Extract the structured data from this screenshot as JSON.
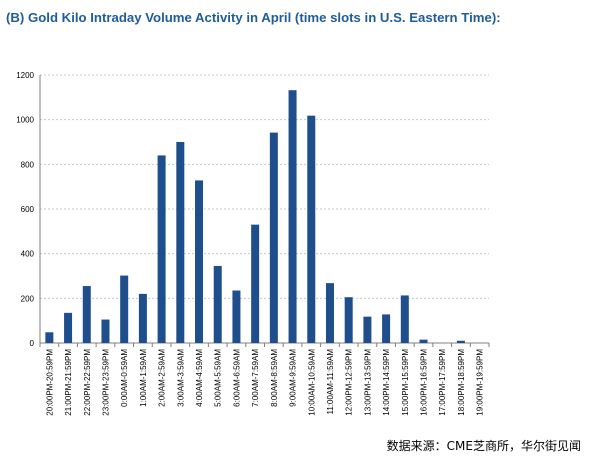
{
  "title": "(B)  Gold Kilo Intraday Volume Activity in April (time slots in U.S. Eastern Time):",
  "source_note": "数据来源：CME芝商所，华尔街见闻",
  "colors": {
    "bar": "#1f4e8c",
    "title": "#1f5c99",
    "grid": "#c8c8c8"
  },
  "chart_data": {
    "type": "bar",
    "title": "(B)  Gold Kilo Intraday Volume Activity in April (time slots in U.S. Eastern Time):",
    "xlabel": "",
    "ylabel": "",
    "ylim": [
      0,
      1200
    ],
    "yticks": [
      0,
      200,
      400,
      600,
      800,
      1000,
      1200
    ],
    "grid": true,
    "categories": [
      "20:00PM-20:59PM",
      "21:00PM-21:59PM",
      "22:00PM-22:59PM",
      "23:00PM-23:59PM",
      "0:00AM-0:59AM",
      "1:00AM-1:59AM",
      "2:00AM-2:59AM",
      "3:00AM-3:59AM",
      "4:00AM-4:59AM",
      "5:00AM-5:59AM",
      "6:00AM-6:59AM",
      "7:00AM-7:59AM",
      "8:00AM-8:59AM",
      "9:00AM-9:59AM",
      "10:00AM-10:59AM",
      "11:00AM-11:59AM",
      "12:00PM-12:59PM",
      "13:00PM-13:59PM",
      "14:00PM-14:59PM",
      "15:00PM-15:59PM",
      "16:00PM-16:59PM",
      "17:00PM-17:59PM",
      "18:00PM-18:59PM",
      "19:00PM-19:59PM"
    ],
    "values": [
      48,
      135,
      255,
      105,
      302,
      220,
      840,
      900,
      728,
      345,
      235,
      530,
      942,
      1132,
      1018,
      268,
      205,
      118,
      128,
      213,
      15,
      0,
      10,
      0
    ]
  }
}
